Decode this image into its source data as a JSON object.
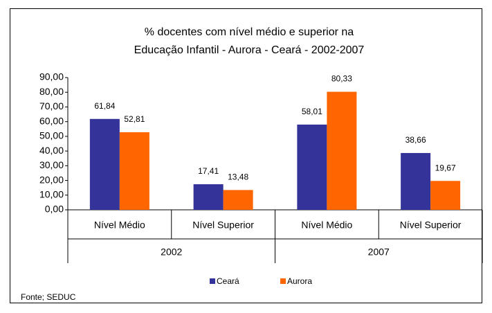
{
  "chart_data": {
    "type": "bar",
    "title": [
      "% docentes com nível médio e superior na",
      "Educação Infantil - Aurora -  Ceará - 2002-2007"
    ],
    "categories": [
      "Nível Médio",
      "Nível Superior",
      "Nível Médio",
      "Nível Superior"
    ],
    "groups": [
      "2002",
      "2007"
    ],
    "series": [
      {
        "name": "Ceará",
        "color": "#333399",
        "values": [
          61.84,
          17.41,
          58.01,
          38.66
        ],
        "value_labels": [
          "61,84",
          "17,41",
          "58,01",
          "38,66"
        ]
      },
      {
        "name": "Aurora",
        "color": "#ff6600",
        "values": [
          52.81,
          13.48,
          80.33,
          19.67
        ],
        "value_labels": [
          "52,81",
          "13,48",
          "80,33",
          "19,67"
        ]
      }
    ],
    "ylim": [
      0,
      90
    ],
    "yticks": [
      {
        "value": 0,
        "label": "0,00"
      },
      {
        "value": 10,
        "label": "10,00"
      },
      {
        "value": 20,
        "label": "20,00"
      },
      {
        "value": 30,
        "label": "30,00"
      },
      {
        "value": 40,
        "label": "40,00"
      },
      {
        "value": 50,
        "label": "50,00"
      },
      {
        "value": 60,
        "label": "60,00"
      },
      {
        "value": 70,
        "label": "70,00"
      },
      {
        "value": 80,
        "label": "80,00"
      },
      {
        "value": 90,
        "label": "90,00"
      }
    ],
    "source": "Fonte; SEDUC"
  }
}
